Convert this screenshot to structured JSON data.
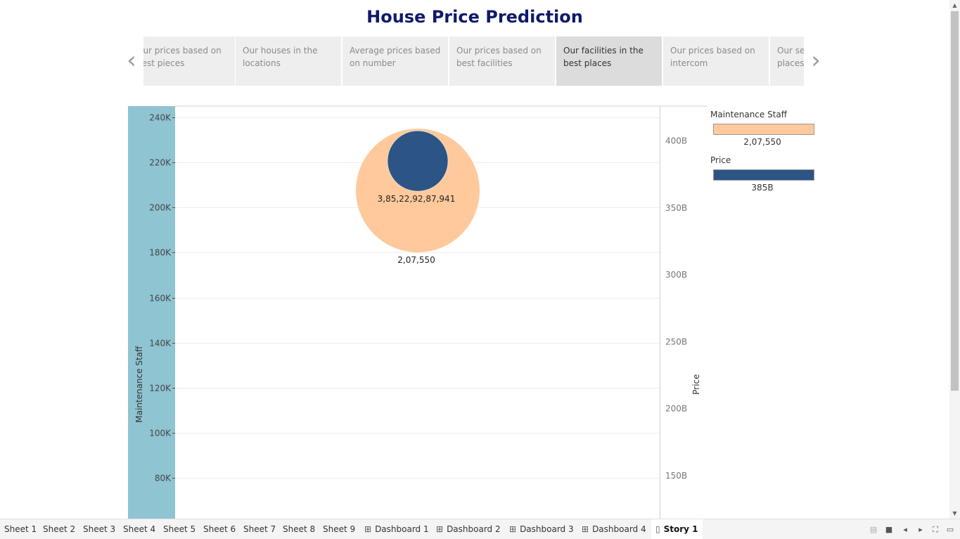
{
  "story": {
    "title": "House Price Prediction",
    "points": [
      {
        "label": "Our prices based on best pieces",
        "active": false
      },
      {
        "label": "Our houses in the locations",
        "active": false
      },
      {
        "label": "Average prices based on number",
        "active": false
      },
      {
        "label": "Our prices based on best facilities",
        "active": false
      },
      {
        "label": "Our facilities in the best places",
        "active": true
      },
      {
        "label": "Our prices based on intercom",
        "active": false
      },
      {
        "label": "Our services in the places",
        "active": false
      }
    ]
  },
  "chart_data": {
    "type": "scatter",
    "mark": "circle",
    "left_axis": {
      "label": "Maintenance Staff",
      "ticks": [
        80000,
        100000,
        120000,
        140000,
        160000,
        180000,
        200000,
        220000,
        240000
      ],
      "tick_labels": [
        "80K",
        "100K",
        "120K",
        "140K",
        "160K",
        "180K",
        "200K",
        "220K",
        "240K"
      ],
      "range": [
        62000,
        245000
      ]
    },
    "right_axis": {
      "label": "Price",
      "ticks": [
        150,
        200,
        250,
        300,
        350,
        400
      ],
      "tick_labels": [
        "150B",
        "200B",
        "250B",
        "300B",
        "350B",
        "400B"
      ],
      "unit": "billion",
      "range": [
        118,
        426
      ]
    },
    "series": [
      {
        "name": "Maintenance Staff",
        "value": 207550,
        "label": "2,07,550",
        "color": "#ffc99c",
        "axis": "left"
      },
      {
        "name": "Price",
        "value": 385,
        "label": "3,85,22,92,87,941",
        "color": "#2c5585",
        "axis": "right"
      }
    ],
    "grid": true,
    "legend": {
      "placement": "right",
      "items": [
        {
          "title": "Maintenance Staff",
          "value_label": "2,07,550",
          "color": "#ffc99c"
        },
        {
          "title": "Price",
          "value_label": "385B",
          "color": "#2c5585"
        }
      ]
    }
  },
  "tabs": [
    {
      "label": "Sheet 1",
      "kind": "sheet",
      "active": false
    },
    {
      "label": "Sheet 2",
      "kind": "sheet",
      "active": false
    },
    {
      "label": "Sheet 3",
      "kind": "sheet",
      "active": false
    },
    {
      "label": "Sheet 4",
      "kind": "sheet",
      "active": false
    },
    {
      "label": "Sheet 5",
      "kind": "sheet",
      "active": false
    },
    {
      "label": "Sheet 6",
      "kind": "sheet",
      "active": false
    },
    {
      "label": "Sheet 7",
      "kind": "sheet",
      "active": false
    },
    {
      "label": "Sheet 8",
      "kind": "sheet",
      "active": false
    },
    {
      "label": "Sheet 9",
      "kind": "sheet",
      "active": false
    },
    {
      "label": "Dashboard 1",
      "kind": "dashboard",
      "active": false
    },
    {
      "label": "Dashboard 2",
      "kind": "dashboard",
      "active": false
    },
    {
      "label": "Dashboard 3",
      "kind": "dashboard",
      "active": false
    },
    {
      "label": "Dashboard 4",
      "kind": "dashboard",
      "active": false
    },
    {
      "label": "Story 1",
      "kind": "story",
      "active": true
    }
  ],
  "colors": {
    "title": "#0f1a6b",
    "band": "#8fc4d2",
    "grid": "#eeeeee",
    "axis": "#d0d0d0"
  },
  "icons": {
    "prev": "chevron-left-icon",
    "next": "chevron-right-icon",
    "dashboard": "grid-icon",
    "story": "book-icon"
  }
}
